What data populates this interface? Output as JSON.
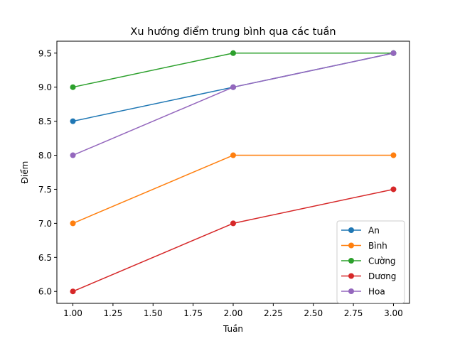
{
  "chart_data": {
    "type": "line",
    "title": "Xu hướng điểm trung bình qua các tuần",
    "xlabel": "Tuần",
    "ylabel": "Điểm",
    "x": [
      1,
      2,
      3
    ],
    "xlim": [
      0.9,
      3.1
    ],
    "ylim": [
      5.825,
      9.675
    ],
    "xticks": [
      1.0,
      1.25,
      1.5,
      1.75,
      2.0,
      2.25,
      2.5,
      2.75,
      3.0
    ],
    "xtick_labels": [
      "1.00",
      "1.25",
      "1.50",
      "1.75",
      "2.00",
      "2.25",
      "2.50",
      "2.75",
      "3.00"
    ],
    "yticks": [
      6.0,
      6.5,
      7.0,
      7.5,
      8.0,
      8.5,
      9.0,
      9.5
    ],
    "ytick_labels": [
      "6.0",
      "6.5",
      "7.0",
      "7.5",
      "8.0",
      "8.5",
      "9.0",
      "9.5"
    ],
    "grid": false,
    "legend_position": "lower right",
    "series": [
      {
        "name": "An",
        "color": "#1f77b4",
        "values": [
          8.5,
          9.0,
          9.5
        ]
      },
      {
        "name": "Bình",
        "color": "#ff7f0e",
        "values": [
          7.0,
          8.0,
          8.0
        ]
      },
      {
        "name": "Cường",
        "color": "#2ca02c",
        "values": [
          9.0,
          9.5,
          9.5
        ]
      },
      {
        "name": "Dương",
        "color": "#d62728",
        "values": [
          6.0,
          7.0,
          7.5
        ]
      },
      {
        "name": "Hoa",
        "color": "#9467bd",
        "values": [
          8.0,
          9.0,
          9.5
        ]
      }
    ]
  }
}
